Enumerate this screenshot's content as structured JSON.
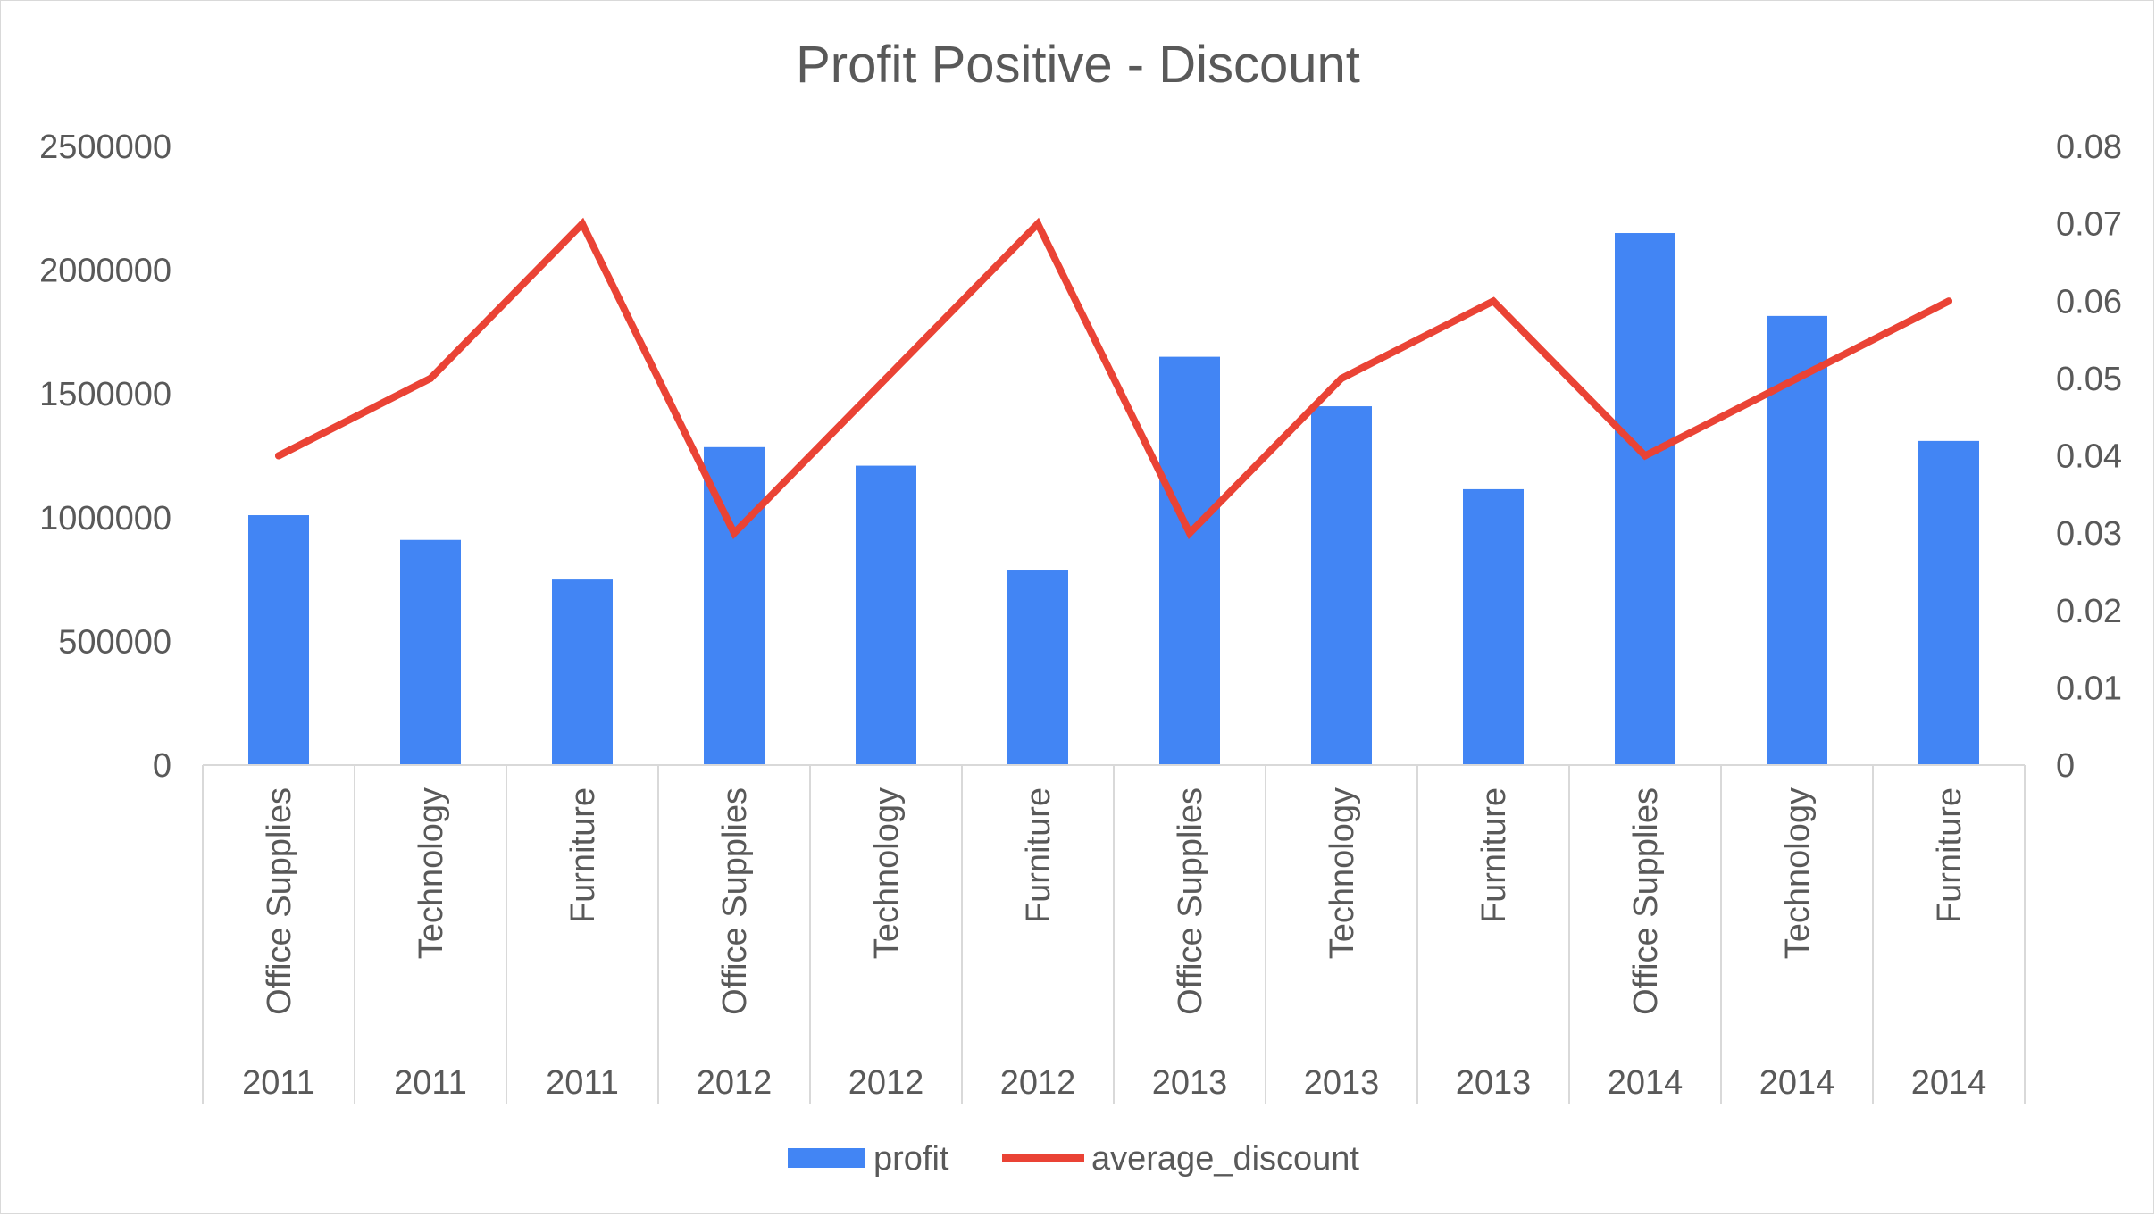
{
  "chart_data": {
    "type": "bar",
    "title": "Profit Positive - Discount",
    "categories": [
      {
        "category": "Office Supplies",
        "year": "2011"
      },
      {
        "category": "Technology",
        "year": "2011"
      },
      {
        "category": "Furniture",
        "year": "2011"
      },
      {
        "category": "Office Supplies",
        "year": "2012"
      },
      {
        "category": "Technology",
        "year": "2012"
      },
      {
        "category": "Furniture",
        "year": "2012"
      },
      {
        "category": "Office Supplies",
        "year": "2013"
      },
      {
        "category": "Technology",
        "year": "2013"
      },
      {
        "category": "Furniture",
        "year": "2013"
      },
      {
        "category": "Office Supplies",
        "year": "2014"
      },
      {
        "category": "Technology",
        "year": "2014"
      },
      {
        "category": "Furniture",
        "year": "2014"
      }
    ],
    "series": [
      {
        "name": "profit",
        "type": "bar",
        "axis": "left",
        "color": "#4285F4",
        "values": [
          1010000,
          910000,
          750000,
          1285000,
          1210000,
          790000,
          1650000,
          1450000,
          1115000,
          2150000,
          1815000,
          1310000
        ]
      },
      {
        "name": "average_discount",
        "type": "line",
        "axis": "right",
        "color": "#EA4335",
        "values": [
          0.04,
          0.05,
          0.07,
          0.03,
          0.05,
          0.07,
          0.03,
          0.05,
          0.06,
          0.04,
          0.05,
          0.06
        ]
      }
    ],
    "y_left": {
      "ylim": [
        0,
        2500000
      ],
      "ticks": [
        "0",
        "500000",
        "1000000",
        "1500000",
        "2000000",
        "2500000"
      ]
    },
    "y_right": {
      "ylim": [
        0,
        0.08
      ],
      "ticks": [
        "0",
        "0.01",
        "0.02",
        "0.03",
        "0.04",
        "0.05",
        "0.06",
        "0.07",
        "0.08"
      ]
    },
    "grid": false,
    "legend_position": "bottom"
  }
}
